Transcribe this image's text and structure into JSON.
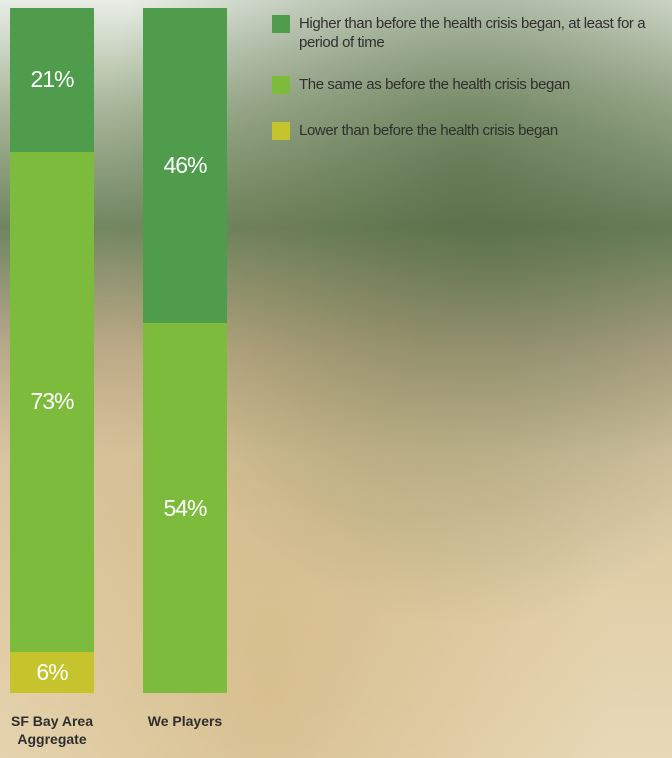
{
  "chart_data": {
    "type": "stacked-bar",
    "categories": [
      "SF Bay Area Aggregate",
      "We Players"
    ],
    "series": [
      {
        "name": "Lower than before the health crisis began",
        "color": "#c6c42c",
        "values": [
          6,
          0
        ],
        "value_labels": [
          "6%",
          null
        ]
      },
      {
        "name": "The same as before the health crisis began",
        "color": "#7dbb3c",
        "values": [
          73,
          54
        ],
        "value_labels": [
          "73%",
          "54%"
        ]
      },
      {
        "name": "Higher than before the health crisis began, at least for a period of time",
        "color": "#4e9c4c",
        "values": [
          21,
          46
        ],
        "value_labels": [
          "21%",
          "46%"
        ]
      }
    ],
    "ylim": [
      0,
      100
    ]
  }
}
